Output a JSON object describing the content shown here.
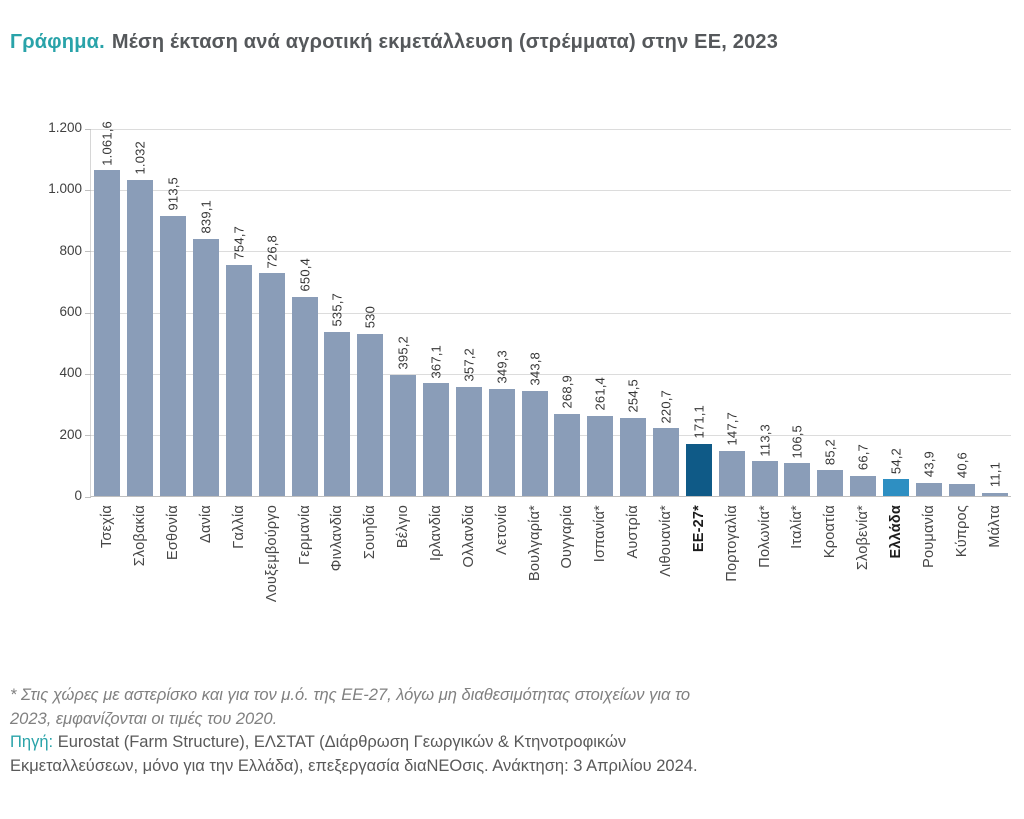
{
  "title": {
    "prefix": "Γράφημα.",
    "text": "Μέση έκταση ανά αγροτική εκμετάλλευση (στρέμματα) στην ΕΕ, 2023"
  },
  "footnote": {
    "lines": [
      "* Στις χώρες με αστερίσκο και για τον μ.ό. της ΕΕ-27, λόγω μη διαθεσιμότητας στοιχείων για το",
      "2023, εμφανίζονται οι τιμές του 2020."
    ]
  },
  "source": {
    "label": "Πηγή:",
    "line1": "Eurostat (Farm Structure), ΕΛΣΤΑΤ (Διάρθρωση Γεωργικών & Κτηνοτροφικών",
    "line2": "Εκμεταλλεύσεων, μόνο για την Ελλάδα), επεξεργασία διαΝΕΟσις. Ανάκτηση: 3 Απριλίου 2024."
  },
  "chart_data": {
    "type": "bar",
    "title": "Μέση έκταση ανά αγροτική εκμετάλλευση (στρέμματα) στην ΕΕ, 2023",
    "xlabel": "",
    "ylabel": "",
    "ylim": [
      0,
      1200
    ],
    "grid": true,
    "legend": "none",
    "yticks": [
      0,
      200,
      400,
      600,
      800,
      1000,
      1200
    ],
    "ytick_labels": [
      "0",
      "200",
      "400",
      "600",
      "800",
      "1.000",
      "1.200"
    ],
    "colors": {
      "default": "#8A9DB8",
      "eu": "#0F5A87",
      "greece": "#2E8FC2"
    },
    "bars": [
      {
        "label": "Τσεχία",
        "value": 1061.6,
        "display": "1.061,6"
      },
      {
        "label": "Σλοβακία",
        "value": 1032,
        "display": "1.032"
      },
      {
        "label": "Εσθονία",
        "value": 913.5,
        "display": "913,5"
      },
      {
        "label": "Δανία",
        "value": 839.1,
        "display": "839,1"
      },
      {
        "label": "Γαλλία",
        "value": 754.7,
        "display": "754,7"
      },
      {
        "label": "Λουξεμβούργο",
        "value": 726.8,
        "display": "726,8"
      },
      {
        "label": "Γερμανία",
        "value": 650.4,
        "display": "650,4"
      },
      {
        "label": "Φινλανδία",
        "value": 535.7,
        "display": "535,7"
      },
      {
        "label": "Σουηδία",
        "value": 530,
        "display": "530"
      },
      {
        "label": "Βέλγιο",
        "value": 395.2,
        "display": "395,2"
      },
      {
        "label": "Ιρλανδία",
        "value": 367.1,
        "display": "367,1"
      },
      {
        "label": "Ολλανδία",
        "value": 357.2,
        "display": "357,2"
      },
      {
        "label": "Λετονία",
        "value": 349.3,
        "display": "349,3"
      },
      {
        "label": "Βουλγαρία*",
        "value": 343.8,
        "display": "343,8"
      },
      {
        "label": "Ουγγαρία",
        "value": 268.9,
        "display": "268,9"
      },
      {
        "label": "Ισπανία*",
        "value": 261.4,
        "display": "261,4"
      },
      {
        "label": "Αυστρία",
        "value": 254.5,
        "display": "254,5"
      },
      {
        "label": "Λιθουανία*",
        "value": 220.7,
        "display": "220,7"
      },
      {
        "label": "ΕΕ-27*",
        "value": 171.1,
        "display": "171,1",
        "color": "eu",
        "bold": true
      },
      {
        "label": "Πορτογαλία",
        "value": 147.7,
        "display": "147,7"
      },
      {
        "label": "Πολωνία*",
        "value": 113.3,
        "display": "113,3"
      },
      {
        "label": "Ιταλία*",
        "value": 106.5,
        "display": "106,5"
      },
      {
        "label": "Κροατία",
        "value": 85.2,
        "display": "85,2"
      },
      {
        "label": "Σλοβενία*",
        "value": 66.7,
        "display": "66,7"
      },
      {
        "label": "Ελλάδα",
        "value": 54.2,
        "display": "54,2",
        "color": "greece",
        "bold": true
      },
      {
        "label": "Ρουμανία",
        "value": 43.9,
        "display": "43,9"
      },
      {
        "label": "Κύπρος",
        "value": 40.6,
        "display": "40,6"
      },
      {
        "label": "Μάλτα",
        "value": 11.1,
        "display": "11,1"
      }
    ]
  }
}
